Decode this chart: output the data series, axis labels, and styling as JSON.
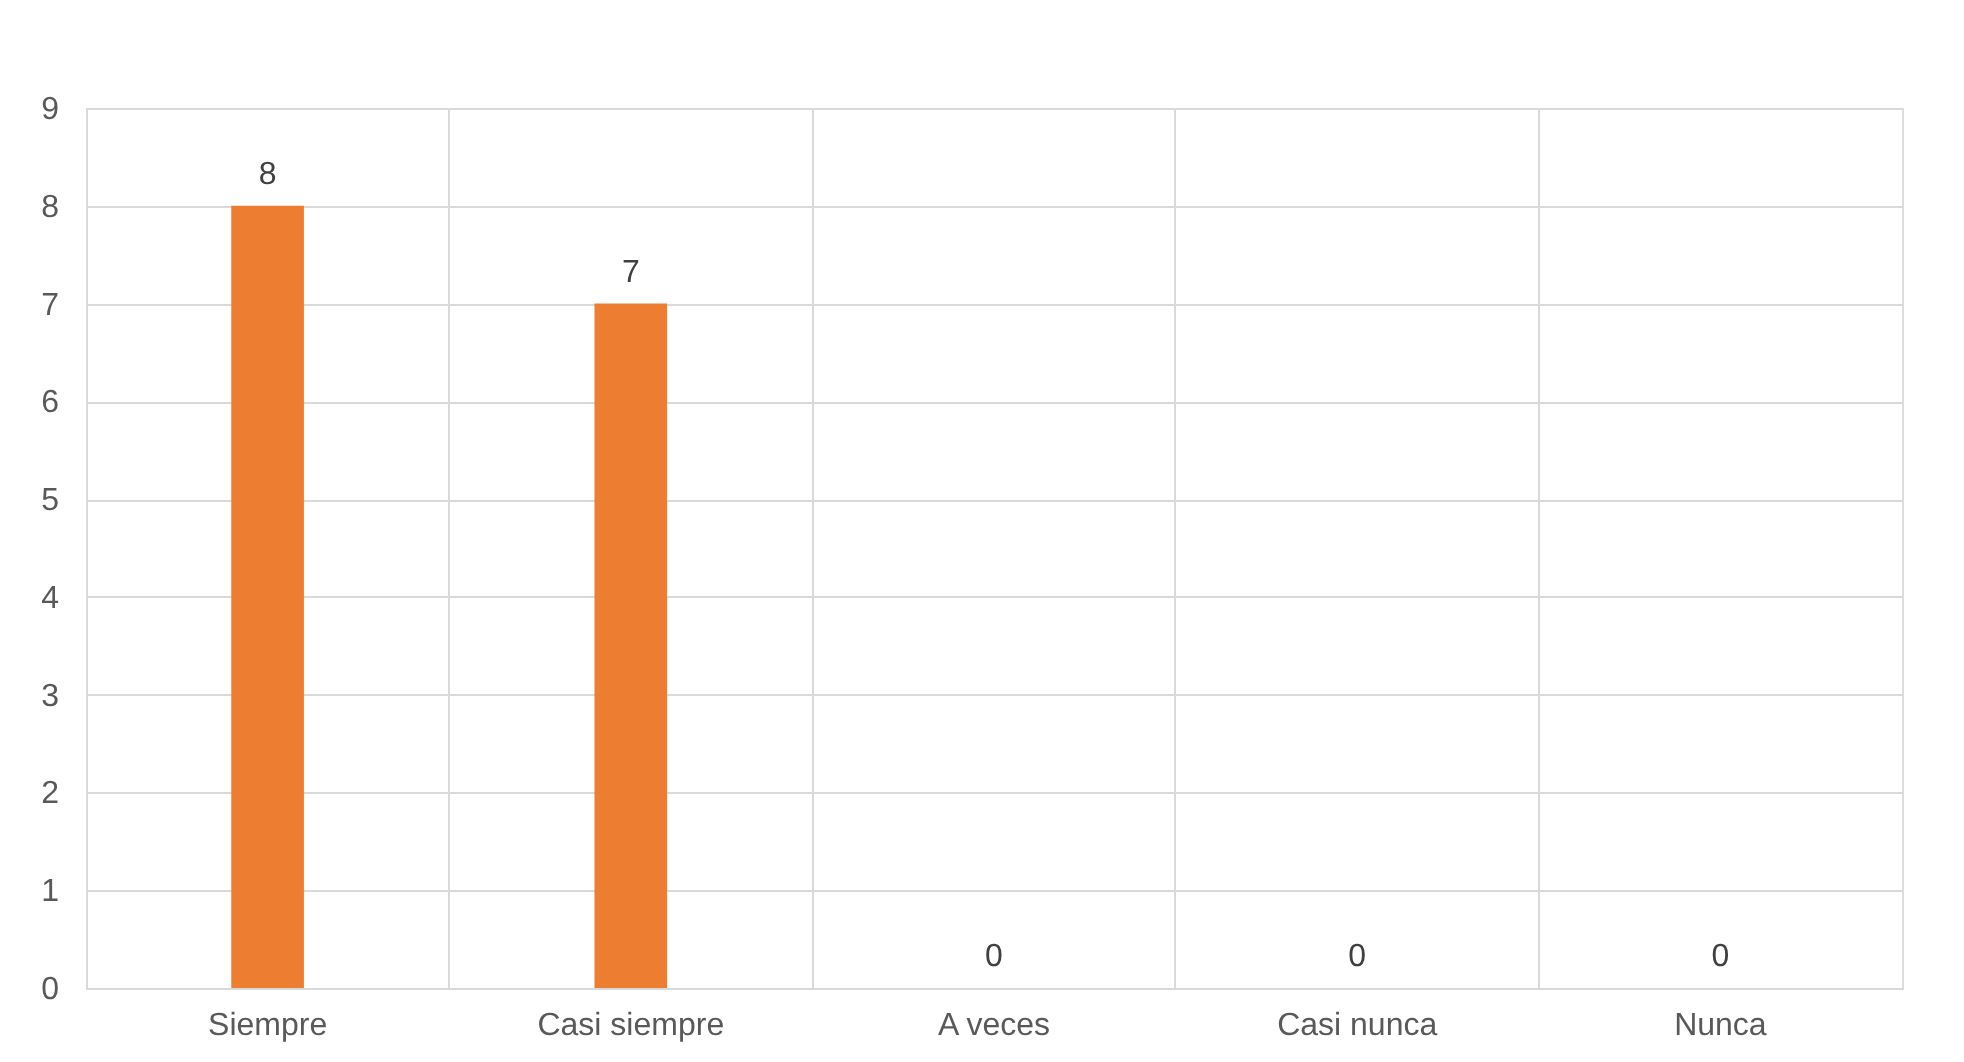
{
  "chart_data": {
    "type": "bar",
    "categories": [
      "Siempre",
      "Casi siempre",
      "A veces",
      "Casi nunca",
      "Nunca"
    ],
    "values": [
      8,
      7,
      0,
      0,
      0
    ],
    "color": "#ed7d31",
    "ylim": [
      0,
      9
    ],
    "yticks": [
      0,
      1,
      2,
      3,
      4,
      5,
      6,
      7,
      8,
      9
    ],
    "grid": true,
    "data_labels": true
  }
}
